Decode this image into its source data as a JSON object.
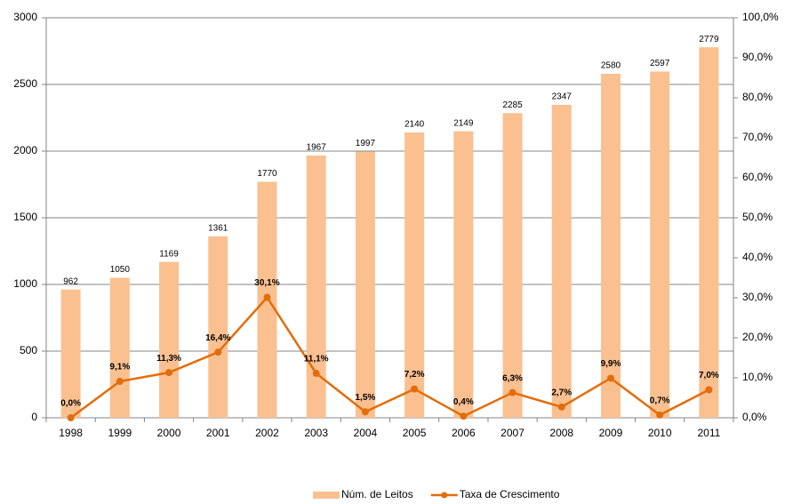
{
  "chart_data": {
    "type": "bar",
    "categories": [
      "1998",
      "1999",
      "2000",
      "2001",
      "2002",
      "2003",
      "2004",
      "2005",
      "2006",
      "2007",
      "2008",
      "2009",
      "2010",
      "2011"
    ],
    "series": [
      {
        "name": "Núm. de Leitos",
        "type": "bar",
        "color": "#fac090",
        "values": [
          962,
          1050,
          1169,
          1361,
          1770,
          1967,
          1997,
          2140,
          2149,
          2285,
          2347,
          2580,
          2597,
          2779
        ]
      },
      {
        "name": "Taxa de Crescimento",
        "type": "line",
        "axis": "y2",
        "color": "#e46c0a",
        "values": [
          0.0,
          9.1,
          11.3,
          16.4,
          30.1,
          11.1,
          1.5,
          7.2,
          0.4,
          6.3,
          2.7,
          9.9,
          0.7,
          7.0
        ],
        "value_labels": [
          "0,0%",
          "9,1%",
          "11,3%",
          "16,4%",
          "30,1%",
          "11,1%",
          "1,5%",
          "7,2%",
          "0,4%",
          "6,3%",
          "2,7%",
          "9,9%",
          "0,7%",
          "7,0%"
        ]
      }
    ],
    "ylim": [
      0,
      3000
    ],
    "yticks": [
      0,
      500,
      1000,
      1500,
      2000,
      2500,
      3000
    ],
    "y2lim": [
      0,
      100
    ],
    "y2ticks": [
      {
        "value": 0,
        "label": "0,0%"
      },
      {
        "value": 10,
        "label": "10,0%"
      },
      {
        "value": 20,
        "label": "20,0%"
      },
      {
        "value": 30,
        "label": "30,0%"
      },
      {
        "value": 40,
        "label": "40,0%"
      },
      {
        "value": 50,
        "label": "50,0%"
      },
      {
        "value": 60,
        "label": "60,0%"
      },
      {
        "value": 70,
        "label": "70,0%"
      },
      {
        "value": 80,
        "label": "80,0%"
      },
      {
        "value": 90,
        "label": "90,0%"
      },
      {
        "value": 100,
        "label": "100,0%"
      }
    ],
    "grid": true,
    "legend": "bottom"
  }
}
